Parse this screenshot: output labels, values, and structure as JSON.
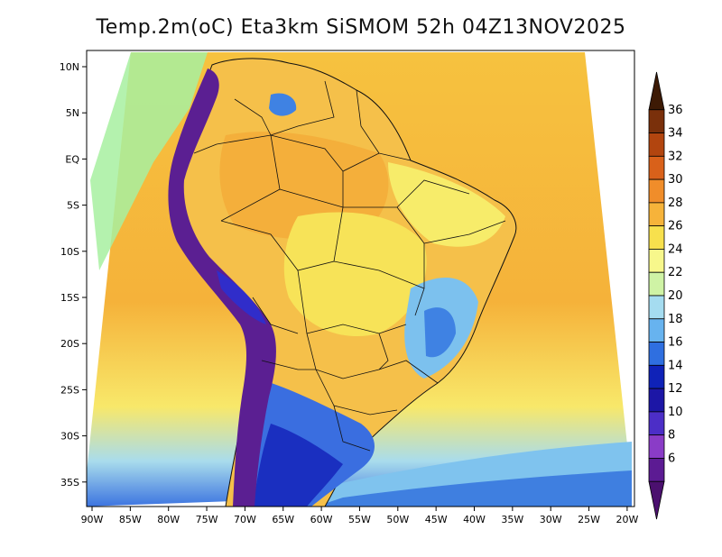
{
  "title": "Temp.2m(oC) Eta3km SiSMOM 52h 04Z13NOV2025",
  "map": {
    "y_labels": [
      "10N",
      "5N",
      "EQ",
      "5S",
      "10S",
      "15S",
      "20S",
      "25S",
      "30S",
      "35S"
    ],
    "x_labels": [
      "90W",
      "85W",
      "80W",
      "75W",
      "70W",
      "65W",
      "60W",
      "55W",
      "50W",
      "45W",
      "40W",
      "35W",
      "30W",
      "25W",
      "20W"
    ]
  },
  "colorbar": {
    "labels": [
      "36",
      "34",
      "32",
      "30",
      "28",
      "26",
      "24",
      "22",
      "20",
      "18",
      "16",
      "14",
      "12",
      "10",
      "8",
      "6"
    ],
    "colors": [
      "#3d1a05",
      "#7a300b",
      "#b2450f",
      "#d9611a",
      "#f08d2a",
      "#f6b33a",
      "#f7e04d",
      "#f7f78b",
      "#cff3a5",
      "#a5dcf0",
      "#67b3ef",
      "#2f6fe0",
      "#0f22b8",
      "#1c16a6",
      "#4c2ec7",
      "#8a3cc7",
      "#5c1b93",
      "#4b106f"
    ]
  }
}
